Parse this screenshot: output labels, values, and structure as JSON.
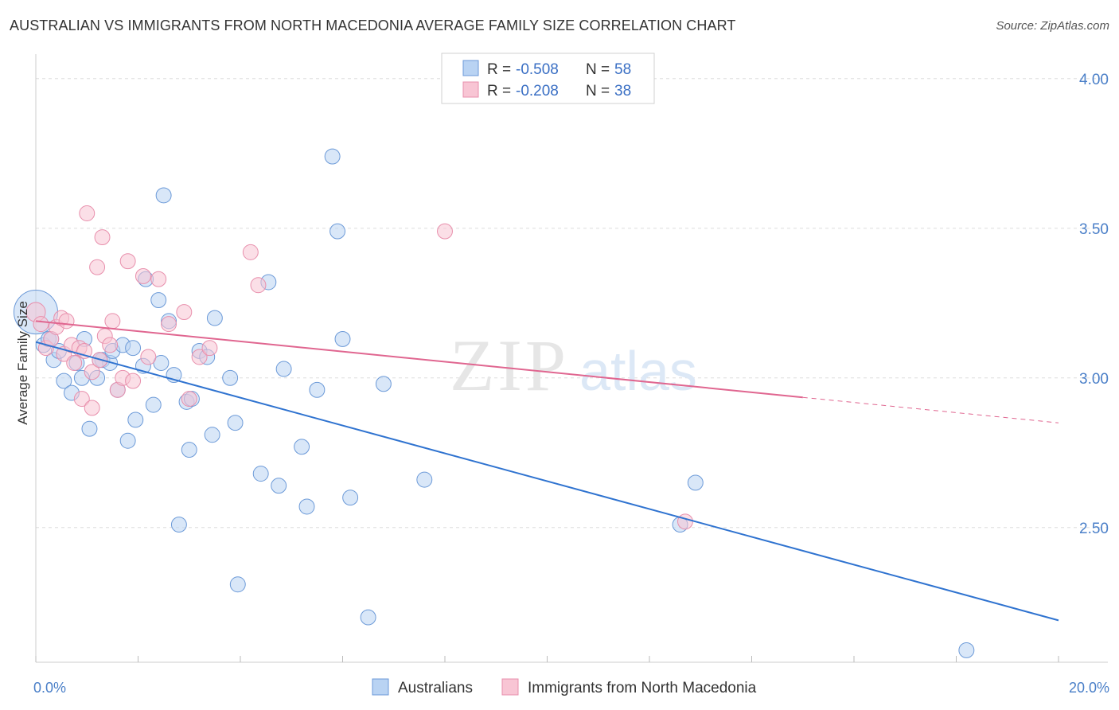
{
  "title": "AUSTRALIAN VS IMMIGRANTS FROM NORTH MACEDONIA AVERAGE FAMILY SIZE CORRELATION CHART",
  "source": "Source: ZipAtlas.com",
  "watermark": {
    "zip": "ZIP",
    "atlas": "atlas"
  },
  "colors": {
    "blue_fill": "#b9d3f3",
    "blue_stroke": "#6c9ad8",
    "blue_line": "#2f73d0",
    "pink_fill": "#f8c5d4",
    "pink_stroke": "#e88fac",
    "pink_line": "#e06690",
    "tick": "#4a7fc8",
    "grid": "#dddddd"
  },
  "legend": {
    "rows": [
      {
        "r_label": "R = ",
        "r_value": "-0.508",
        "n_label": "N = ",
        "n_value": "58"
      },
      {
        "r_label": "R = ",
        "r_value": "-0.208",
        "n_label": "N = ",
        "n_value": "38"
      }
    ]
  },
  "chart_data": {
    "type": "scatter",
    "title": "AUSTRALIAN VS IMMIGRANTS FROM NORTH MACEDONIA AVERAGE FAMILY SIZE CORRELATION CHART",
    "xlabel": "",
    "ylabel": "Average Family Size",
    "xlim": [
      0,
      20
    ],
    "ylim": [
      2.05,
      4.05
    ],
    "x_tick_labels": [
      {
        "value": 0,
        "label": "0.0%"
      },
      {
        "value": 20,
        "label": "20.0%"
      }
    ],
    "y_ticks": [
      {
        "value": 2.5,
        "label": "2.50"
      },
      {
        "value": 3.0,
        "label": "3.00"
      },
      {
        "value": 3.5,
        "label": "3.50"
      },
      {
        "value": 4.0,
        "label": "4.00"
      }
    ],
    "grid": true,
    "legend_position": "top-center",
    "series": [
      {
        "name": "Australians",
        "color": "blue",
        "trend": {
          "x": [
            0,
            20
          ],
          "y": [
            3.12,
            2.19
          ],
          "dashed_from": null
        },
        "points": [
          [
            0.0,
            3.22,
            32
          ],
          [
            0.15,
            3.11,
            11
          ],
          [
            0.25,
            3.13,
            11
          ],
          [
            0.35,
            3.06,
            11
          ],
          [
            0.45,
            3.09,
            11
          ],
          [
            0.55,
            2.99,
            11
          ],
          [
            0.7,
            2.95,
            11
          ],
          [
            0.8,
            3.05,
            11
          ],
          [
            0.95,
            3.13,
            11
          ],
          [
            0.9,
            3.0,
            11
          ],
          [
            1.05,
            2.83,
            11
          ],
          [
            1.2,
            3.0,
            11
          ],
          [
            1.3,
            3.06,
            11
          ],
          [
            1.45,
            3.05,
            11
          ],
          [
            1.5,
            3.09,
            11
          ],
          [
            1.6,
            2.96,
            11
          ],
          [
            1.7,
            3.11,
            11
          ],
          [
            1.8,
            2.79,
            11
          ],
          [
            1.9,
            3.1,
            11
          ],
          [
            1.95,
            2.86,
            11
          ],
          [
            2.1,
            3.04,
            11
          ],
          [
            2.15,
            3.33,
            11
          ],
          [
            2.3,
            2.91,
            11
          ],
          [
            2.4,
            3.26,
            11
          ],
          [
            2.45,
            3.05,
            11
          ],
          [
            2.5,
            3.61,
            11
          ],
          [
            2.6,
            3.19,
            11
          ],
          [
            2.7,
            3.01,
            11
          ],
          [
            2.8,
            2.51,
            11
          ],
          [
            2.95,
            2.92,
            11
          ],
          [
            3.0,
            2.76,
            11
          ],
          [
            3.05,
            2.93,
            11
          ],
          [
            3.2,
            3.09,
            11
          ],
          [
            3.35,
            3.07,
            11
          ],
          [
            3.45,
            2.81,
            11
          ],
          [
            3.5,
            3.2,
            11
          ],
          [
            3.8,
            3.0,
            11
          ],
          [
            3.9,
            2.85,
            11
          ],
          [
            3.95,
            2.31,
            11
          ],
          [
            4.4,
            2.68,
            11
          ],
          [
            4.55,
            3.32,
            11
          ],
          [
            4.75,
            2.64,
            11
          ],
          [
            4.85,
            3.03,
            11
          ],
          [
            5.2,
            2.77,
            11
          ],
          [
            5.3,
            2.57,
            11
          ],
          [
            5.5,
            2.96,
            11
          ],
          [
            5.8,
            3.74,
            11
          ],
          [
            5.9,
            3.49,
            11
          ],
          [
            6.0,
            3.13,
            11
          ],
          [
            6.15,
            2.6,
            11
          ],
          [
            6.5,
            2.2,
            11
          ],
          [
            6.8,
            2.98,
            11
          ],
          [
            7.6,
            2.66,
            11
          ],
          [
            12.6,
            2.51,
            11
          ],
          [
            12.9,
            2.65,
            11
          ],
          [
            18.2,
            2.09,
            11
          ],
          [
            0.3,
            3.13,
            11
          ],
          [
            1.25,
            3.06,
            11
          ]
        ]
      },
      {
        "name": "Immigrants from North Macedonia",
        "color": "pink",
        "trend": {
          "x": [
            0,
            20
          ],
          "y": [
            3.19,
            2.85
          ],
          "dashed_from": 15
        },
        "points": [
          [
            0.0,
            3.22,
            14
          ],
          [
            0.1,
            3.18,
            11
          ],
          [
            0.2,
            3.1,
            11
          ],
          [
            0.3,
            3.13,
            11
          ],
          [
            0.4,
            3.17,
            11
          ],
          [
            0.5,
            3.2,
            11
          ],
          [
            0.55,
            3.08,
            11
          ],
          [
            0.6,
            3.19,
            11
          ],
          [
            0.7,
            3.11,
            11
          ],
          [
            0.75,
            3.05,
            11
          ],
          [
            0.85,
            3.1,
            11
          ],
          [
            0.95,
            3.09,
            11
          ],
          [
            1.0,
            3.55,
            11
          ],
          [
            1.1,
            3.02,
            11
          ],
          [
            1.2,
            3.37,
            11
          ],
          [
            1.25,
            3.06,
            11
          ],
          [
            1.3,
            3.47,
            11
          ],
          [
            1.35,
            3.14,
            11
          ],
          [
            1.45,
            3.11,
            11
          ],
          [
            1.5,
            3.19,
            11
          ],
          [
            1.6,
            2.96,
            11
          ],
          [
            1.7,
            3.0,
            11
          ],
          [
            1.8,
            3.39,
            11
          ],
          [
            1.9,
            2.99,
            11
          ],
          [
            2.1,
            3.34,
            11
          ],
          [
            2.2,
            3.07,
            11
          ],
          [
            2.4,
            3.33,
            11
          ],
          [
            2.6,
            3.18,
            11
          ],
          [
            2.9,
            3.22,
            11
          ],
          [
            3.0,
            2.93,
            11
          ],
          [
            3.2,
            3.07,
            11
          ],
          [
            3.4,
            3.1,
            11
          ],
          [
            4.2,
            3.42,
            11
          ],
          [
            4.35,
            3.31,
            11
          ],
          [
            8.0,
            3.49,
            11
          ],
          [
            12.7,
            2.52,
            11
          ],
          [
            0.9,
            2.93,
            11
          ],
          [
            1.1,
            2.9,
            11
          ]
        ]
      }
    ]
  },
  "bottom_legend": [
    {
      "label": "Australians",
      "color": "blue"
    },
    {
      "label": "Immigrants from North Macedonia",
      "color": "pink"
    }
  ]
}
